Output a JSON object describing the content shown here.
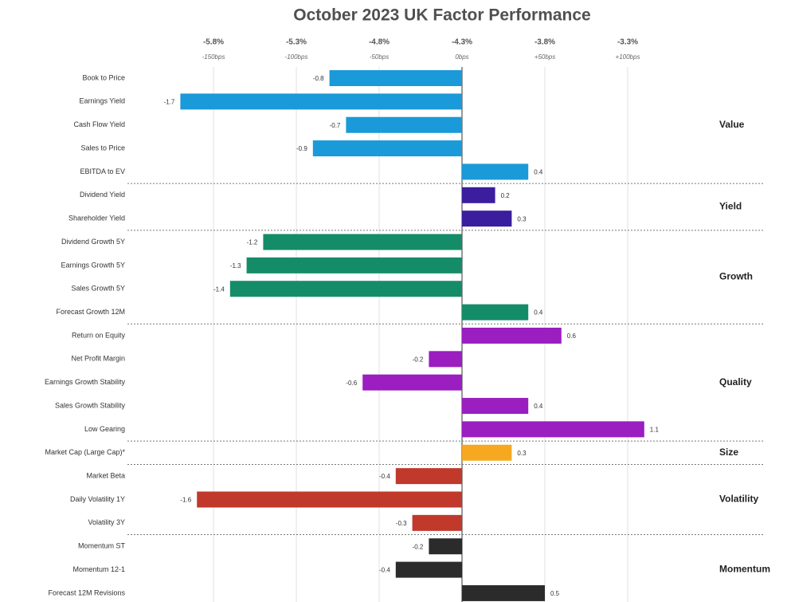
{
  "chart_data": {
    "type": "bar",
    "orientation": "horizontal",
    "title": "October 2023 UK Factor Performance",
    "xlim": [
      -1.7,
      1.3
    ],
    "xticks": [
      {
        "value": -1.5,
        "label": "-5.8%"
      },
      {
        "value": -1.0,
        "label": "-5.3%"
      },
      {
        "value": -0.5,
        "label": "-4.8%"
      },
      {
        "value": 0,
        "label": "-4.3%"
      },
      {
        "value": 0.5,
        "label": "-3.8%"
      },
      {
        "value": 1.0,
        "label": "-3.3%"
      }
    ],
    "xtick_sublabels": [
      "-150bps",
      "-100bps",
      "-50bps",
      "0bps",
      "+50bps",
      "+100bps"
    ],
    "grid": true,
    "groups": [
      {
        "name": "Value",
        "color": "#1a9ad8",
        "categories": [
          "Book to Price",
          "Earnings Yield",
          "Cash Flow Yield",
          "Sales to Price",
          "EBITDA to EV"
        ],
        "values": [
          -0.8,
          -1.7,
          -0.7,
          -0.9,
          0.4
        ]
      },
      {
        "name": "Yield",
        "color": "#3a1e9e",
        "categories": [
          "Dividend Yield",
          "Shareholder Yield"
        ],
        "values": [
          0.2,
          0.3
        ]
      },
      {
        "name": "Growth",
        "color": "#158c68",
        "categories": [
          "Dividend Growth 5Y",
          "Earnings Growth 5Y",
          "Sales Growth 5Y",
          "Forecast Growth 12M"
        ],
        "values": [
          -1.2,
          -1.3,
          -1.4,
          0.4
        ]
      },
      {
        "name": "Quality",
        "color": "#9a1ec0",
        "categories": [
          "Return on Equity",
          "Net Profit Margin",
          "Earnings Growth Stability",
          "Sales Growth Stability",
          "Low Gearing"
        ],
        "values": [
          0.6,
          -0.2,
          -0.6,
          0.4,
          1.1
        ]
      },
      {
        "name": "Size",
        "color": "#f6a821",
        "categories": [
          "Market Cap (Large Cap)*"
        ],
        "values": [
          0.3
        ]
      },
      {
        "name": "Volatility",
        "color": "#c0392b",
        "categories": [
          "Market Beta",
          "Daily Volatility 1Y",
          "Volatility 3Y"
        ],
        "values": [
          -0.4,
          -1.6,
          -0.3
        ]
      },
      {
        "name": "Momentum",
        "color": "#2b2b2b",
        "categories": [
          "Momentum ST",
          "Momentum 12-1",
          "Forecast 12M Revisions"
        ],
        "values": [
          -0.2,
          -0.4,
          0.5
        ]
      }
    ]
  }
}
